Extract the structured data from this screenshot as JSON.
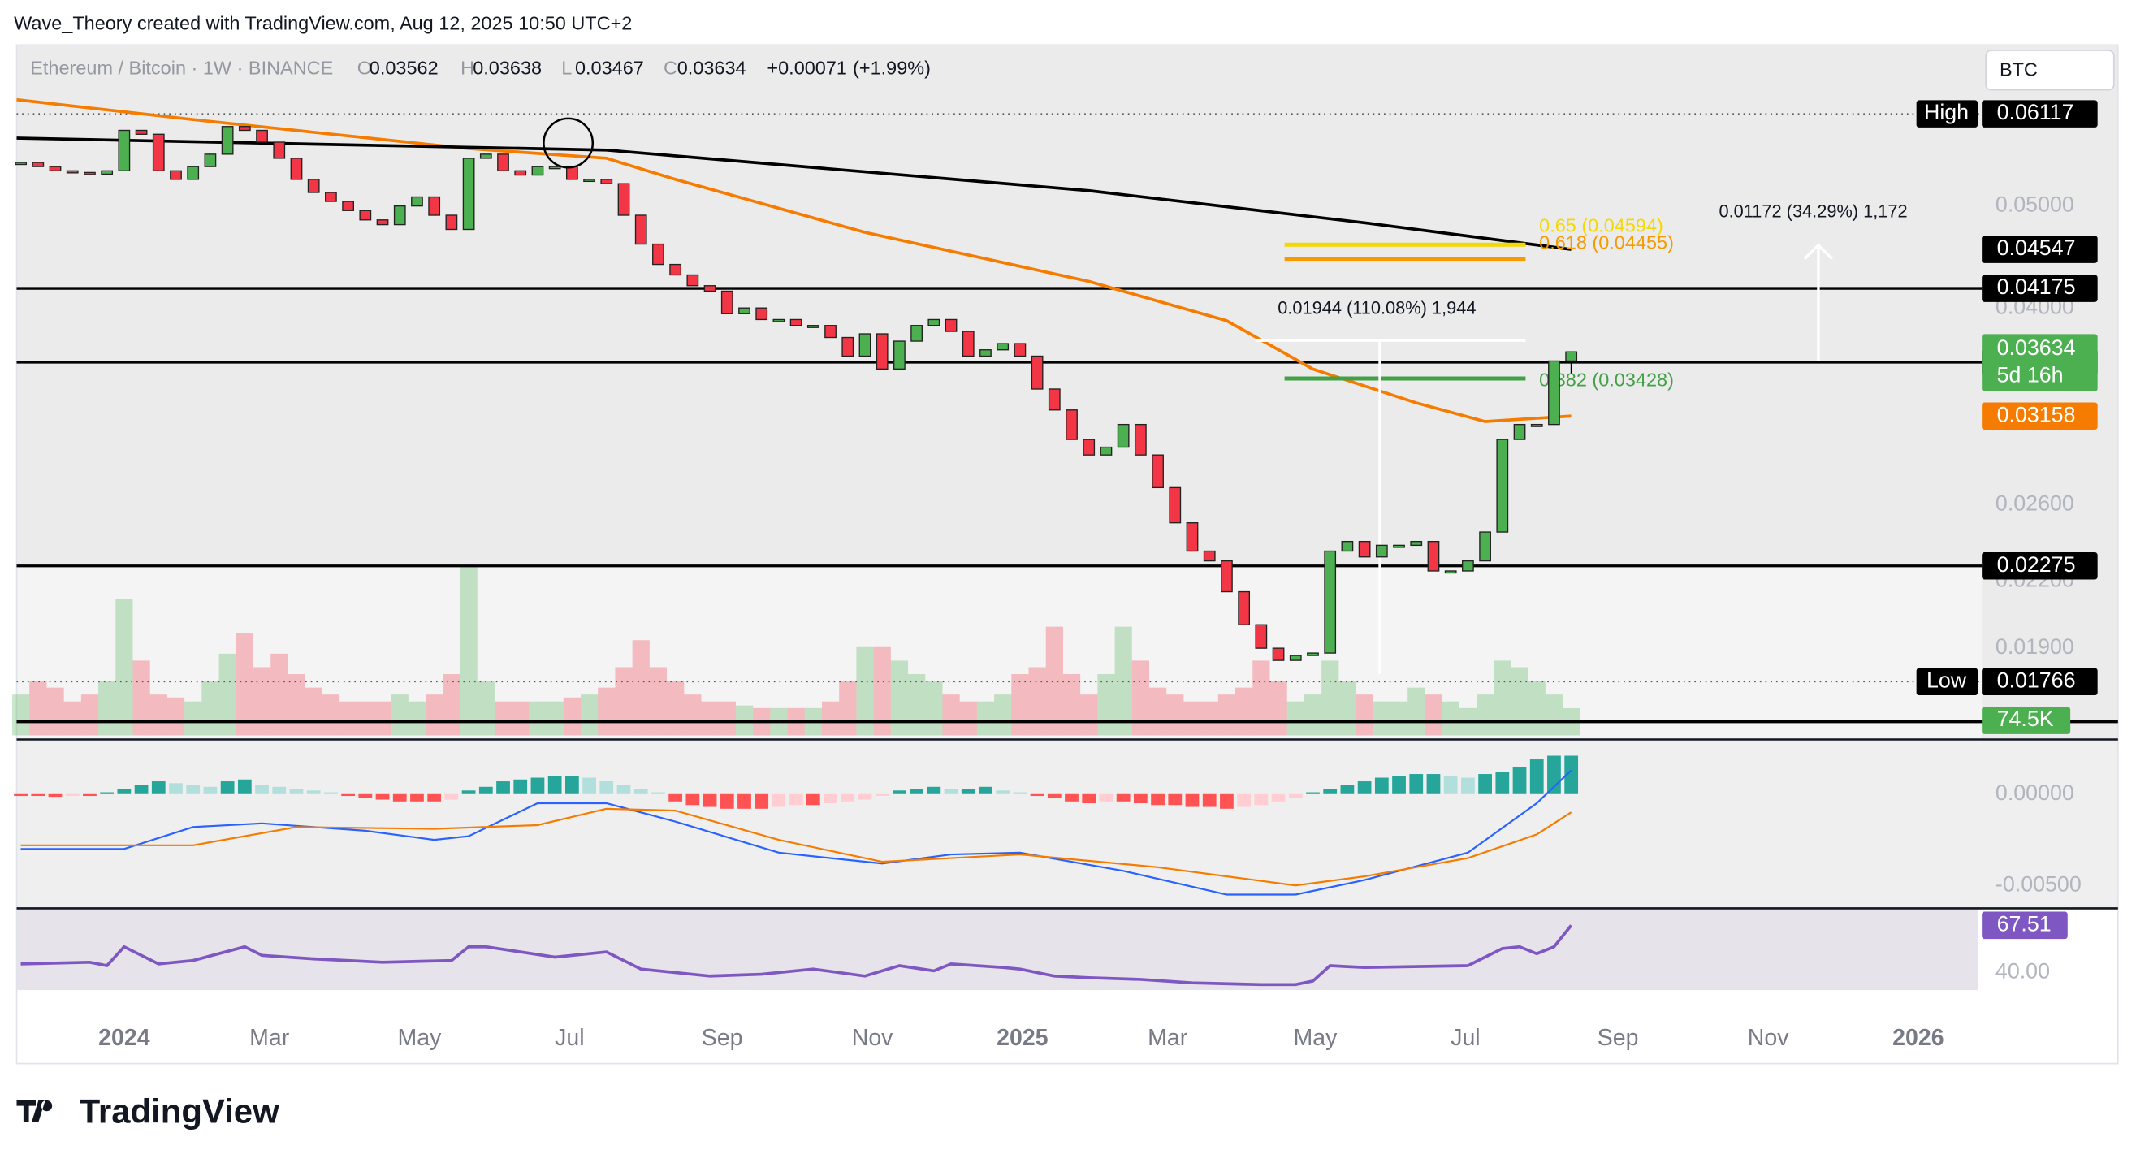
{
  "header": {
    "credit": "Wave_Theory created with TradingView.com, Aug 12, 2025 10:50 UTC+2"
  },
  "logo": "TradingView",
  "chart_data": {
    "type": "candlestick",
    "symbol": "Ethereum / Bitcoin · 1W · BINANCE",
    "currency": "BTC",
    "ohlc_labels": [
      "O",
      "H",
      "L",
      "C"
    ],
    "last": {
      "open": 0.03562,
      "high": 0.03638,
      "low": 0.03467
    },
    "change": {
      "value": 0.00071,
      "label": "+0.00071"
    },
    "change_pct": {
      "value": 1.99,
      "label": "(+1.99%)"
    },
    "close": [
      0.055,
      0.0545,
      0.054,
      0.0538,
      0.0536,
      0.054,
      0.059,
      0.0585,
      0.054,
      0.053,
      0.0545,
      0.056,
      0.0595,
      0.059,
      0.0575,
      0.0555,
      0.053,
      0.0515,
      0.0505,
      0.0495,
      0.0485,
      0.048,
      0.05,
      0.051,
      0.049,
      0.0475,
      0.0555,
      0.056,
      0.054,
      0.0535,
      0.0545,
      0.0545,
      0.053,
      0.053,
      0.0525,
      0.049,
      0.046,
      0.044,
      0.043,
      0.042,
      0.0415,
      0.0395,
      0.04,
      0.039,
      0.039,
      0.0385,
      0.0385,
      0.0375,
      0.036,
      0.0378,
      0.035,
      0.0372,
      0.0385,
      0.039,
      0.038,
      0.036,
      0.0365,
      0.037,
      0.036,
      0.0335,
      0.032,
      0.03,
      0.029,
      0.0295,
      0.031,
      0.029,
      0.027,
      0.025,
      0.0235,
      0.023,
      0.0215,
      0.02,
      0.019,
      0.0185,
      0.0187,
      0.0188,
      0.0235,
      0.024,
      0.0232,
      0.0238,
      0.0238,
      0.024,
      0.0225,
      0.0225,
      0.023,
      0.0245,
      0.03,
      0.031,
      0.031,
      0.03562,
      0.03634
    ],
    "up_color": "#4caf50",
    "down_color": "#f23645",
    "log_scale": true,
    "ylim": [
      0.0157,
      0.0707
    ],
    "yticks": [
      {
        "value": 0.05,
        "label": "0.05000"
      },
      {
        "value": 0.04,
        "label": "0.04000"
      },
      {
        "value": 0.026,
        "label": "0.02600"
      },
      {
        "value": 0.022,
        "label": "0.02200"
      },
      {
        "value": 0.019,
        "label": "0.01900"
      }
    ],
    "xlim": [
      -0.24,
      113.83
    ],
    "xticks": [
      {
        "value": 6,
        "label": "2024"
      },
      {
        "value": 14.43,
        "label": "Mar"
      },
      {
        "value": 23.14,
        "label": "May"
      },
      {
        "value": 31.86,
        "label": "Jul"
      },
      {
        "value": 40.71,
        "label": "Sep"
      },
      {
        "value": 49.43,
        "label": "Nov"
      },
      {
        "value": 58.14,
        "label": "2025"
      },
      {
        "value": 66.57,
        "label": "Mar"
      },
      {
        "value": 75.14,
        "label": "May"
      },
      {
        "value": 83.86,
        "label": "Jul"
      },
      {
        "value": 92.71,
        "label": "Sep"
      },
      {
        "value": 101.43,
        "label": "Nov"
      },
      {
        "value": 110.14,
        "label": "2026"
      }
    ],
    "moving_averages": [
      {
        "color": "#f57c00",
        "x": [
          -0.24,
          10,
          26,
          34,
          38,
          49,
          62,
          70,
          75,
          81,
          85,
          90
        ],
        "values": [
          0.0631,
          0.0604,
          0.0567,
          0.0555,
          0.053,
          0.0472,
          0.0424,
          0.0389,
          0.035,
          0.0325,
          0.0312,
          0.03158
        ]
      },
      {
        "color": "#000000",
        "x": [
          -0.24,
          34,
          62,
          78,
          90
        ],
        "values": [
          0.058,
          0.0565,
          0.0517,
          0.0482,
          0.04547
        ]
      }
    ],
    "levels": [
      0.04175,
      0.03553,
      0.02275
    ],
    "high": {
      "name": "High",
      "value": 0.06117
    },
    "low": {
      "name": "Low",
      "value": 0.01766
    },
    "countdown": "5d 16h",
    "fib": [
      {
        "label": "0.65 (0.04594)",
        "value": 0.04594,
        "color": "#f5d800"
      },
      {
        "label": "0.618 (0.04455)",
        "value": 0.04455,
        "color": "#f59a00"
      },
      {
        "label": "0.382 (0.03428)",
        "value": 0.03428,
        "color": "#43a047"
      }
    ],
    "measures": [
      {
        "label": "0.01944 (110.08%) 1,944"
      },
      {
        "label": "0.01172 (34.29%) 1,172"
      }
    ],
    "volume": {
      "ylim": [
        0,
        560
      ],
      "last_label": "74.5K",
      "values": [
        112,
        149,
        131,
        93,
        112,
        149,
        373,
        205,
        112,
        104,
        93,
        149,
        224,
        280,
        187,
        224,
        168,
        131,
        112,
        93,
        93,
        93,
        112,
        93,
        112,
        168,
        466,
        149,
        93,
        93,
        93,
        93,
        104,
        112,
        131,
        187,
        261,
        187,
        149,
        112,
        93,
        93,
        82,
        75,
        75,
        75,
        75,
        93,
        149,
        242,
        242,
        205,
        168,
        149,
        112,
        93,
        93,
        112,
        168,
        187,
        298,
        168,
        112,
        168,
        298,
        205,
        131,
        112,
        93,
        93,
        112,
        131,
        205,
        149,
        93,
        112,
        205,
        149,
        112,
        93,
        93,
        131,
        112,
        93,
        75,
        112,
        205,
        187,
        149,
        112,
        74.5
      ]
    },
    "macd": {
      "ylim": [
        -0.0061,
        0.00284
      ],
      "yticks": [
        {
          "value": 0,
          "label": "0.00000"
        },
        {
          "value": -0.005,
          "label": "-0.00500"
        }
      ],
      "histogram": [
        -0.0001,
        -0.0001,
        -0.00015,
        -0.0001,
        -0.0001,
        0.0001,
        0.0003,
        0.0005,
        0.0007,
        0.0006,
        0.0005,
        0.0004,
        0.0007,
        0.0008,
        0.0005,
        0.0004,
        0.0003,
        0.0002,
        0.0001,
        -0.0001,
        -0.0002,
        -0.0003,
        -0.0004,
        -0.0004,
        -0.0004,
        -0.0003,
        0.0002,
        0.0004,
        0.0007,
        0.0008,
        0.0009,
        0.001,
        0.001,
        0.0009,
        0.0007,
        0.0005,
        0.0003,
        0.0001,
        -0.0004,
        -0.0006,
        -0.0007,
        -0.0008,
        -0.0008,
        -0.0008,
        -0.0007,
        -0.0006,
        -0.0006,
        -0.0005,
        -0.0004,
        -0.0003,
        -0.0001,
        0.0002,
        0.0003,
        0.0004,
        0.0003,
        0.0003,
        0.0004,
        0.0002,
        0.0001,
        -0.0001,
        -0.0002,
        -0.0004,
        -0.0005,
        -0.0004,
        -0.0004,
        -0.0005,
        -0.0006,
        -0.0006,
        -0.0007,
        -0.0007,
        -0.0008,
        -0.0007,
        -0.0006,
        -0.0004,
        -0.0002,
        0.0001,
        0.0003,
        0.0005,
        0.0007,
        0.0009,
        0.001,
        0.0011,
        0.0011,
        0.001,
        0.0009,
        0.0011,
        0.0012,
        0.0015,
        0.0019,
        0.0021,
        0.0021
      ],
      "macd_line": {
        "color": "#2962ff",
        "x": [
          0,
          6,
          10,
          14,
          20,
          24,
          26,
          30,
          34,
          38,
          44,
          50,
          54,
          58,
          64,
          70,
          74,
          78,
          84,
          88,
          90
        ],
        "values": [
          -0.003,
          -0.003,
          -0.0018,
          -0.0016,
          -0.002,
          -0.0025,
          -0.0023,
          -0.0005,
          -0.0005,
          -0.0015,
          -0.0032,
          -0.0038,
          -0.0033,
          -0.0032,
          -0.0042,
          -0.0055,
          -0.0055,
          -0.0047,
          -0.0032,
          -0.0005,
          0.0013
        ]
      },
      "signal_line": {
        "color": "#f57c00",
        "x": [
          0,
          10,
          16,
          24,
          30,
          34,
          38,
          44,
          50,
          58,
          66,
          74,
          78,
          84,
          88,
          90
        ],
        "values": [
          -0.0028,
          -0.0028,
          -0.0018,
          -0.0019,
          -0.0017,
          -0.0008,
          -0.0009,
          -0.0025,
          -0.0037,
          -0.0033,
          -0.004,
          -0.005,
          -0.0045,
          -0.0035,
          -0.0022,
          -0.001
        ]
      }
    },
    "rsi": {
      "color": "#7e57c2",
      "ylim": [
        29,
        76.6
      ],
      "yticks": [
        {
          "value": 40,
          "label": "40.00"
        }
      ],
      "x": [
        0,
        4,
        5,
        6,
        8,
        10,
        13,
        14,
        17,
        21,
        25,
        26,
        27,
        29,
        31,
        34,
        36,
        40,
        43,
        46,
        49,
        51,
        53,
        54,
        57,
        58,
        60,
        62,
        65,
        68,
        72,
        74,
        75,
        76,
        78,
        84,
        86,
        87,
        88,
        89,
        90
      ],
      "values": [
        45,
        46,
        44,
        55,
        45,
        47,
        55,
        50,
        48,
        46,
        47,
        55,
        55,
        52,
        49,
        52,
        42,
        38,
        39,
        42,
        38,
        44,
        41,
        45,
        43,
        42,
        38,
        37,
        36,
        34,
        33,
        33,
        35,
        44,
        43,
        44,
        54,
        55,
        51,
        55,
        67.51
      ]
    }
  }
}
